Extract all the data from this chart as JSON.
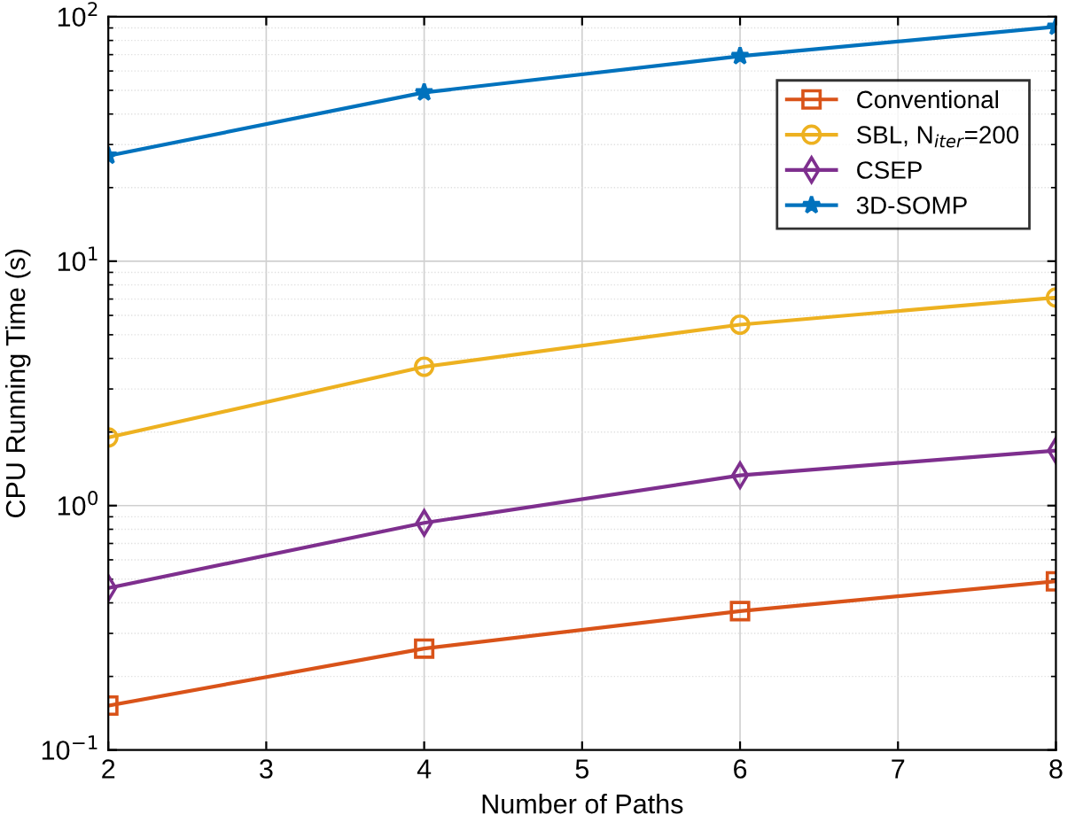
{
  "chart_data": {
    "type": "line",
    "xlabel": "Number of Paths",
    "ylabel": "CPU Running Time (s)",
    "x": [
      2,
      4,
      6,
      8
    ],
    "series": [
      {
        "name": "Conventional",
        "color": "#d95319",
        "marker": "square",
        "values": [
          0.152,
          0.26,
          0.37,
          0.49
        ]
      },
      {
        "name": "SBL, N$_{iter}$=200",
        "color": "#edb120",
        "marker": "circle",
        "values": [
          1.9,
          3.7,
          5.5,
          7.1
        ]
      },
      {
        "name": "CSEP",
        "color": "#7e2f8e",
        "marker": "diamond",
        "values": [
          0.46,
          0.85,
          1.33,
          1.68
        ]
      },
      {
        "name": "3D-SOMP",
        "color": "#0072bd",
        "marker": "star",
        "values": [
          27,
          49,
          69,
          91
        ]
      }
    ],
    "log": "y",
    "xlim": [
      2,
      8
    ],
    "xticks": [
      2,
      3,
      4,
      5,
      6,
      7,
      8
    ],
    "ylim": [
      0.1,
      100
    ],
    "yticks": [
      {
        "value": 0.1,
        "label": "10$^{−1}$"
      },
      {
        "value": 1,
        "label": "10$^{0}$"
      },
      {
        "value": 10,
        "label": "10$^{1}$"
      },
      {
        "value": 100,
        "label": "10$^{2}$"
      }
    ],
    "grid": true,
    "legend": "top right",
    "line_style": "solid"
  }
}
